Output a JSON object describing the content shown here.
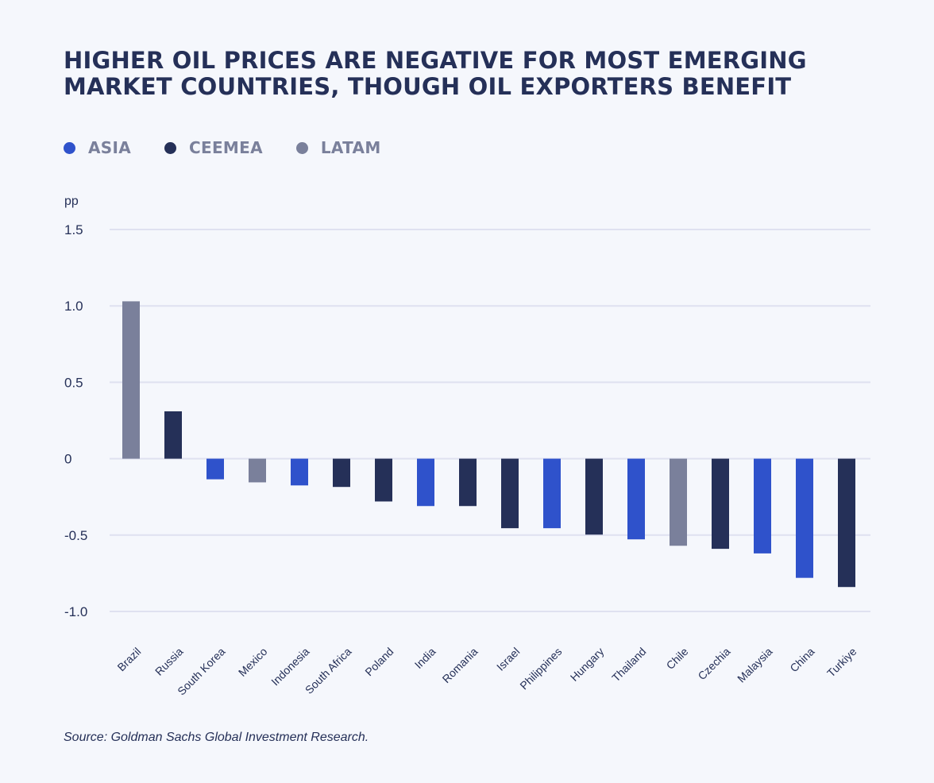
{
  "title": "HIGHER OIL PRICES ARE NEGATIVE FOR MOST EMERGING MARKET COUNTRIES, THOUGH OIL EXPORTERS BENEFIT",
  "legend": [
    {
      "label": "ASIA",
      "color": "#2f52cb"
    },
    {
      "label": "CEEMEA",
      "color": "#253058"
    },
    {
      "label": "LATAM",
      "color": "#7a809b"
    }
  ],
  "source": "Source: Goldman Sachs Global Investment Research.",
  "chart_data": {
    "type": "bar",
    "title": "HIGHER OIL PRICES ARE NEGATIVE FOR MOST EMERGING MARKET COUNTRIES, THOUGH OIL EXPORTERS BENEFIT",
    "xlabel": "",
    "ylabel": "pp",
    "ylim": [
      -1.0,
      1.5
    ],
    "yticks": [
      1.5,
      1.0,
      0.5,
      0,
      -0.5,
      -1.0
    ],
    "ytick_labels": [
      "1.5",
      "1.0",
      "0.5",
      "0",
      "-0.5",
      "-1.0"
    ],
    "grid": true,
    "legend_position": "top-left",
    "categories": [
      "Brazil",
      "Russia",
      "South Korea",
      "Mexico",
      "Indonesia",
      "South Africa",
      "Poland",
      "India",
      "Romania",
      "Israel",
      "Philippines",
      "Hungary",
      "Thailand",
      "Chile",
      "Czechia",
      "Malaysia",
      "China",
      "Turkiye"
    ],
    "values": [
      1.03,
      0.31,
      -0.135,
      -0.155,
      -0.175,
      -0.185,
      -0.28,
      -0.31,
      -0.31,
      -0.455,
      -0.455,
      -0.497,
      -0.528,
      -0.57,
      -0.59,
      -0.62,
      -0.78,
      -0.84
    ],
    "regions": [
      "LATAM",
      "CEEMEA",
      "ASIA",
      "LATAM",
      "ASIA",
      "CEEMEA",
      "CEEMEA",
      "ASIA",
      "CEEMEA",
      "CEEMEA",
      "ASIA",
      "CEEMEA",
      "ASIA",
      "LATAM",
      "CEEMEA",
      "ASIA",
      "ASIA",
      "CEEMEA"
    ]
  }
}
